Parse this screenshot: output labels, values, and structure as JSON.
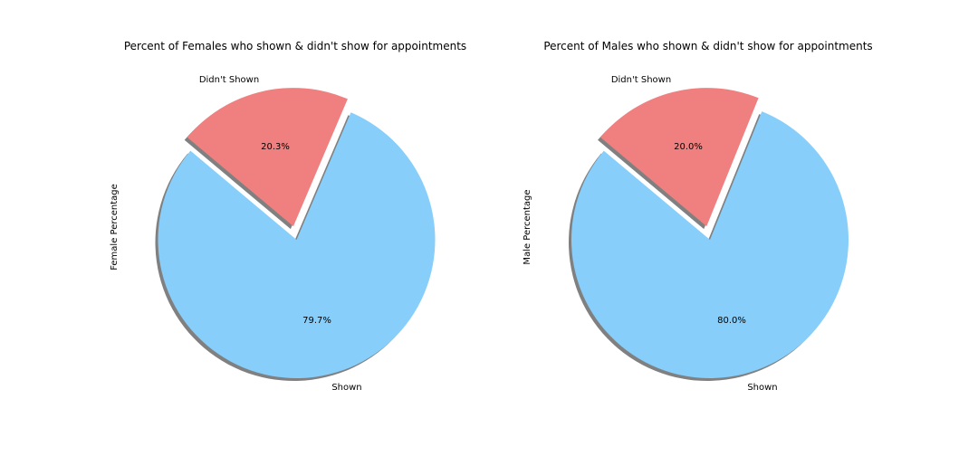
{
  "chart_data": [
    {
      "type": "pie",
      "title": "Percent of Females who shown & didn't show for appointments",
      "ylabel": "Female Percentage",
      "categories": [
        "Shown",
        "Didn't Shown"
      ],
      "values": [
        79.7,
        20.3
      ],
      "autopct_labels": [
        "79.7%",
        "20.3%"
      ],
      "colors": [
        "#87CEFA",
        "#F08080"
      ],
      "exploded": [
        false,
        true
      ],
      "shadow": true,
      "start_angle_deg": 140
    },
    {
      "type": "pie",
      "title": "Percent of Males who shown & didn't show for appointments",
      "ylabel": "Male Percentage",
      "categories": [
        "Shown",
        "Didn't Shown"
      ],
      "values": [
        80.0,
        20.0
      ],
      "autopct_labels": [
        "80.0%",
        "20.0%"
      ],
      "colors": [
        "#87CEFA",
        "#F08080"
      ],
      "exploded": [
        false,
        true
      ],
      "shadow": true,
      "start_angle_deg": 140
    }
  ]
}
